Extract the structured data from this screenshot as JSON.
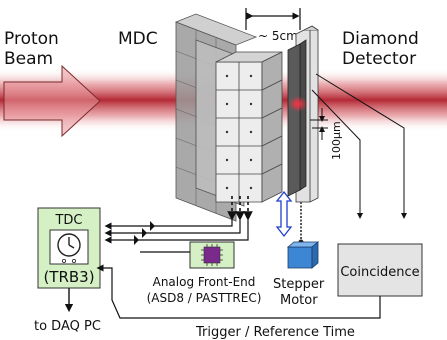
{
  "labels": {
    "proton_beam_line1": "Proton",
    "proton_beam_line2": "Beam",
    "mdc": "MDC",
    "distance": "~ 5cm",
    "diamond_line1": "Diamond",
    "diamond_line2": "Detector",
    "thickness": "100µm",
    "tdc": "TDC",
    "trb3": "(TRB3)",
    "frontend_line1": "Analog Front-End",
    "frontend_line2": "(ASD8 / PASTTREC)",
    "stepper_line1": "Stepper",
    "stepper_line2": "Motor",
    "coincidence": "Coincidence",
    "daq": "to DAQ PC",
    "trigger": "Trigger / Reference Time"
  },
  "colors": {
    "beam": "#c0303a",
    "tdc_fill": "#d6f0c6",
    "frontend_fill": "#d6f0c6",
    "chip": "#7a2a8a",
    "motor": "#4a90d9",
    "diamond_dark": "#4a4a4a",
    "mdc_front": "#e8e8e8",
    "mdc_back": "#9e9e9e",
    "arrow_blue": "#1f3fd0"
  },
  "icons": [
    "clock-icon",
    "chip-icon",
    "beam-arrow-icon",
    "stepper-motor-icon"
  ]
}
